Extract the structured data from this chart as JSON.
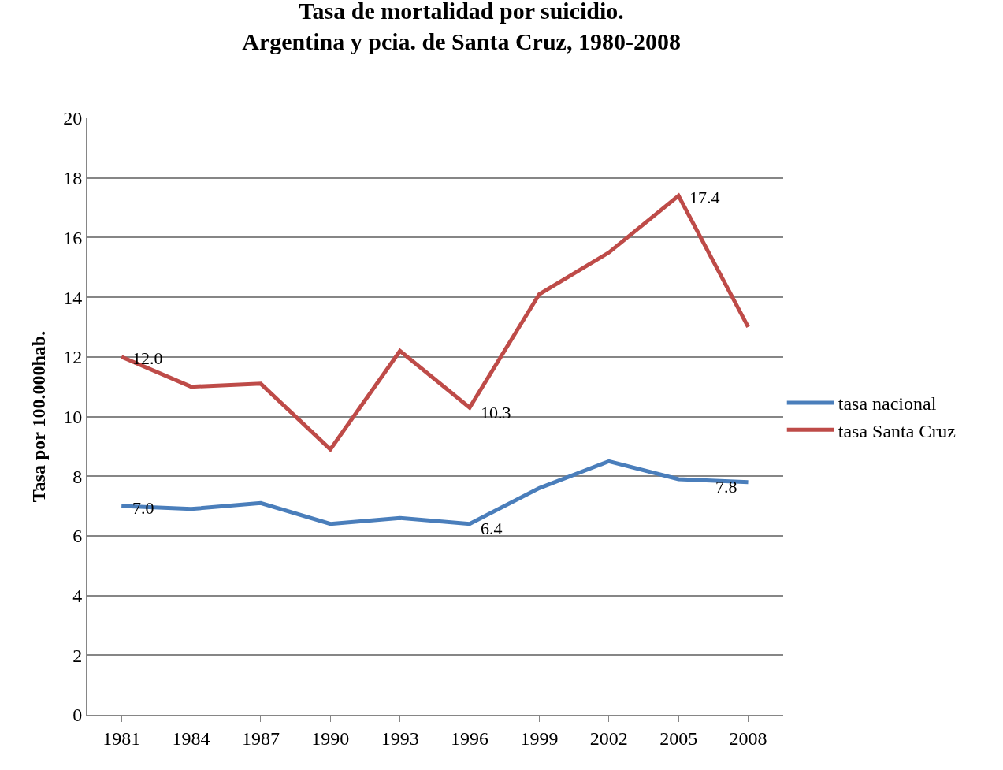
{
  "chart_data": {
    "type": "line",
    "title": "Tasa de mortalidad por suicidio.\nArgentina y pcia. de Santa Cruz, 1980-2008",
    "ylabel": "Tasa por 100.000hab.",
    "categories": [
      "1981",
      "1984",
      "1987",
      "1990",
      "1993",
      "1996",
      "1999",
      "2002",
      "2005",
      "2008"
    ],
    "series": [
      {
        "name": "tasa nacional",
        "color": "#4a7ebb",
        "values": [
          7.0,
          6.9,
          7.1,
          6.4,
          6.6,
          6.4,
          7.6,
          8.5,
          7.9,
          7.8
        ],
        "value_labels": [
          "7.0",
          null,
          null,
          null,
          null,
          "6.4",
          null,
          null,
          null,
          "7.8"
        ]
      },
      {
        "name": "tasa Santa Cruz",
        "color": "#be4b48",
        "values": [
          12.0,
          11.0,
          11.1,
          8.9,
          12.2,
          10.3,
          14.1,
          15.5,
          17.4,
          13.0
        ],
        "value_labels": [
          "12.0",
          null,
          null,
          null,
          null,
          "10.3",
          null,
          null,
          "17.4",
          null
        ]
      }
    ],
    "ylim": [
      0,
      20
    ],
    "yticks": [
      0,
      2,
      4,
      6,
      8,
      10,
      12,
      14,
      16,
      18,
      20
    ],
    "grid": "y",
    "legend": "right",
    "marker": "none",
    "line_style": "solid"
  }
}
